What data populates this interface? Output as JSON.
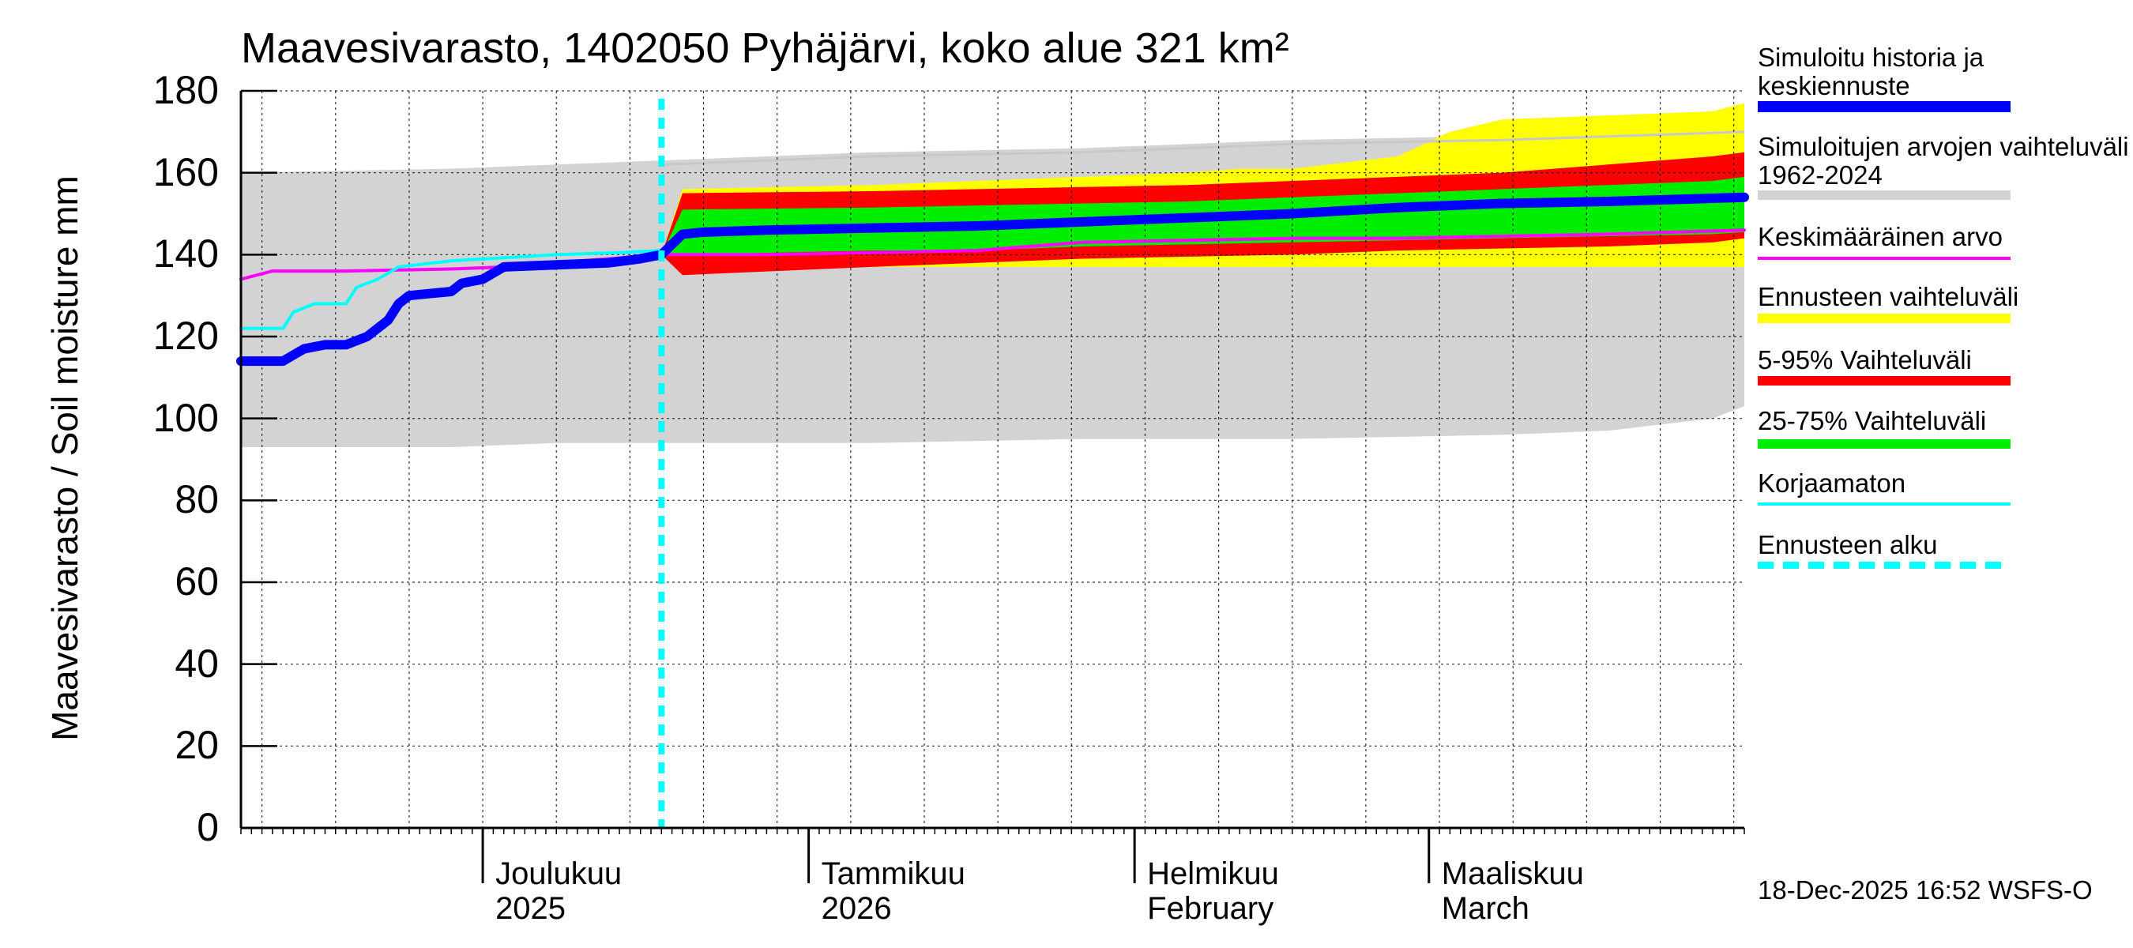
{
  "chart_data": {
    "type": "area",
    "title": "Maavesivarasto, 1402050 Pyhäjärvi, koko alue 321 km²",
    "ylabel": "Maavesivarasto / Soil moisture   mm",
    "ylim": [
      0,
      180
    ],
    "yticks": [
      "0",
      "20",
      "40",
      "60",
      "80",
      "100",
      "120",
      "140",
      "160",
      "180"
    ],
    "x_start": "2025-11-08",
    "x_end": "2026-03-31",
    "forecast_start": "2025-12-18",
    "month_labels": [
      {
        "line1": "Joulukuu",
        "line2": "2025",
        "date": "2025-12-01"
      },
      {
        "line1": "Tammikuu",
        "line2": "2026",
        "date": "2026-01-01"
      },
      {
        "line1": "Helmikuu",
        "line2": "February",
        "date": "2026-02-01"
      },
      {
        "line1": "Maaliskuu",
        "line2": "March",
        "date": "2026-03-01"
      }
    ],
    "series": {
      "hist_range": {
        "name": "Simuloitujen arvojen vaihteluväli 1962-2024",
        "x": [
          0,
          20,
          30,
          40,
          60,
          80,
          90,
          100,
          110,
          120,
          130,
          140,
          143
        ],
        "upper": [
          160,
          161,
          162,
          163,
          165,
          166,
          167,
          168,
          168.5,
          169,
          170,
          170.5,
          171
        ],
        "lower": [
          93,
          93,
          94,
          94,
          94,
          95,
          95,
          95,
          95.5,
          96,
          97,
          100,
          103
        ]
      },
      "forecast_range": {
        "name": "Ennusteen vaihteluväli",
        "x": [
          40,
          42,
          60,
          70,
          80,
          90,
          95,
          100,
          110,
          115,
          120,
          130,
          140,
          143
        ],
        "upper": [
          140,
          156,
          157,
          158,
          159,
          160,
          161,
          161,
          164,
          170,
          173,
          174,
          175,
          177
        ],
        "lower": [
          140,
          136,
          137,
          137,
          137,
          137,
          137,
          137,
          137,
          137,
          137,
          137,
          137,
          137
        ]
      },
      "p5_95": {
        "name": "5-95% Vaihteluväli",
        "x": [
          40,
          42,
          60,
          70,
          80,
          90,
          100,
          110,
          120,
          130,
          140,
          143
        ],
        "upper": [
          140,
          155,
          155.5,
          156,
          156.5,
          157,
          158,
          159,
          160,
          162,
          164,
          165
        ],
        "lower": [
          140,
          135,
          137,
          138,
          139,
          139.5,
          140,
          141,
          141.5,
          142,
          143,
          144
        ]
      },
      "p25_75": {
        "name": "25-75% Vaihteluväli",
        "x": [
          40,
          42,
          60,
          70,
          80,
          90,
          100,
          110,
          120,
          130,
          140,
          143
        ],
        "upper": [
          140,
          151,
          151.5,
          152,
          152.5,
          153,
          154,
          155,
          156,
          157,
          158,
          159
        ],
        "lower": [
          140,
          140,
          141,
          141,
          142,
          142.5,
          143,
          143.5,
          144,
          144.5,
          145,
          145.5
        ]
      },
      "mean": {
        "name": "Keskimääräinen arvo",
        "x": [
          0,
          3,
          10,
          20,
          25,
          35,
          40,
          50,
          60,
          70,
          80,
          90,
          100,
          110,
          120,
          130,
          143
        ],
        "values": [
          134,
          136,
          136,
          136.5,
          137,
          139,
          140,
          140,
          140.5,
          141,
          143,
          143.5,
          144,
          144,
          144.5,
          145,
          146
        ]
      },
      "uncorrected": {
        "name": "Korjaamaton",
        "x": [
          0,
          4,
          5,
          7,
          10,
          11,
          13,
          15,
          20,
          30,
          36,
          40
        ],
        "values": [
          122,
          122,
          126,
          128,
          128,
          132,
          134,
          137,
          138.5,
          140,
          140.5,
          141
        ]
      },
      "simulated": {
        "name": "Simuloitu historia ja keskiennuste",
        "x": [
          0,
          4,
          6,
          8,
          10,
          12,
          14,
          15,
          16,
          18,
          20,
          21,
          23,
          25,
          30,
          35,
          38,
          40,
          42,
          44,
          50,
          60,
          70,
          80,
          90,
          100,
          110,
          120,
          130,
          143
        ],
        "values": [
          114,
          114,
          117,
          118,
          118,
          120,
          124,
          128,
          130,
          130.5,
          131,
          133,
          134,
          137,
          137.5,
          138,
          139,
          140,
          145,
          145.5,
          146,
          146.5,
          147,
          148,
          149,
          150,
          151.5,
          152.5,
          153,
          154
        ]
      }
    },
    "colors": {
      "hist_range": "#d3d3d3",
      "forecast_range": "#ffff00",
      "p5_95": "#ff0000",
      "p25_75": "#00ee00",
      "mean": "#ff00ff",
      "uncorrected": "#00ffff",
      "simulated": "#0000ff",
      "forecast_start": "#00ffff"
    }
  },
  "legend": [
    {
      "key": "simulated",
      "label": "Simuloitu historia ja keskiennuste",
      "style": "thick"
    },
    {
      "key": "hist_range",
      "label": "Simuloitujen arvojen vaihteluväli 1962-2024",
      "style": "band"
    },
    {
      "key": "mean",
      "label": "Keskimääräinen arvo",
      "style": "thin"
    },
    {
      "key": "forecast_range",
      "label": "Ennusteen vaihteluväli",
      "style": "band"
    },
    {
      "key": "p5_95",
      "label": "5-95% Vaihteluväli",
      "style": "band"
    },
    {
      "key": "p25_75",
      "label": "25-75% Vaihteluväli",
      "style": "band"
    },
    {
      "key": "uncorrected",
      "label": "Korjaamaton",
      "style": "thin"
    },
    {
      "key": "forecast_start",
      "label": "Ennusteen alku",
      "style": "dashed"
    }
  ],
  "footer": "18-Dec-2025 16:52 WSFS-O"
}
